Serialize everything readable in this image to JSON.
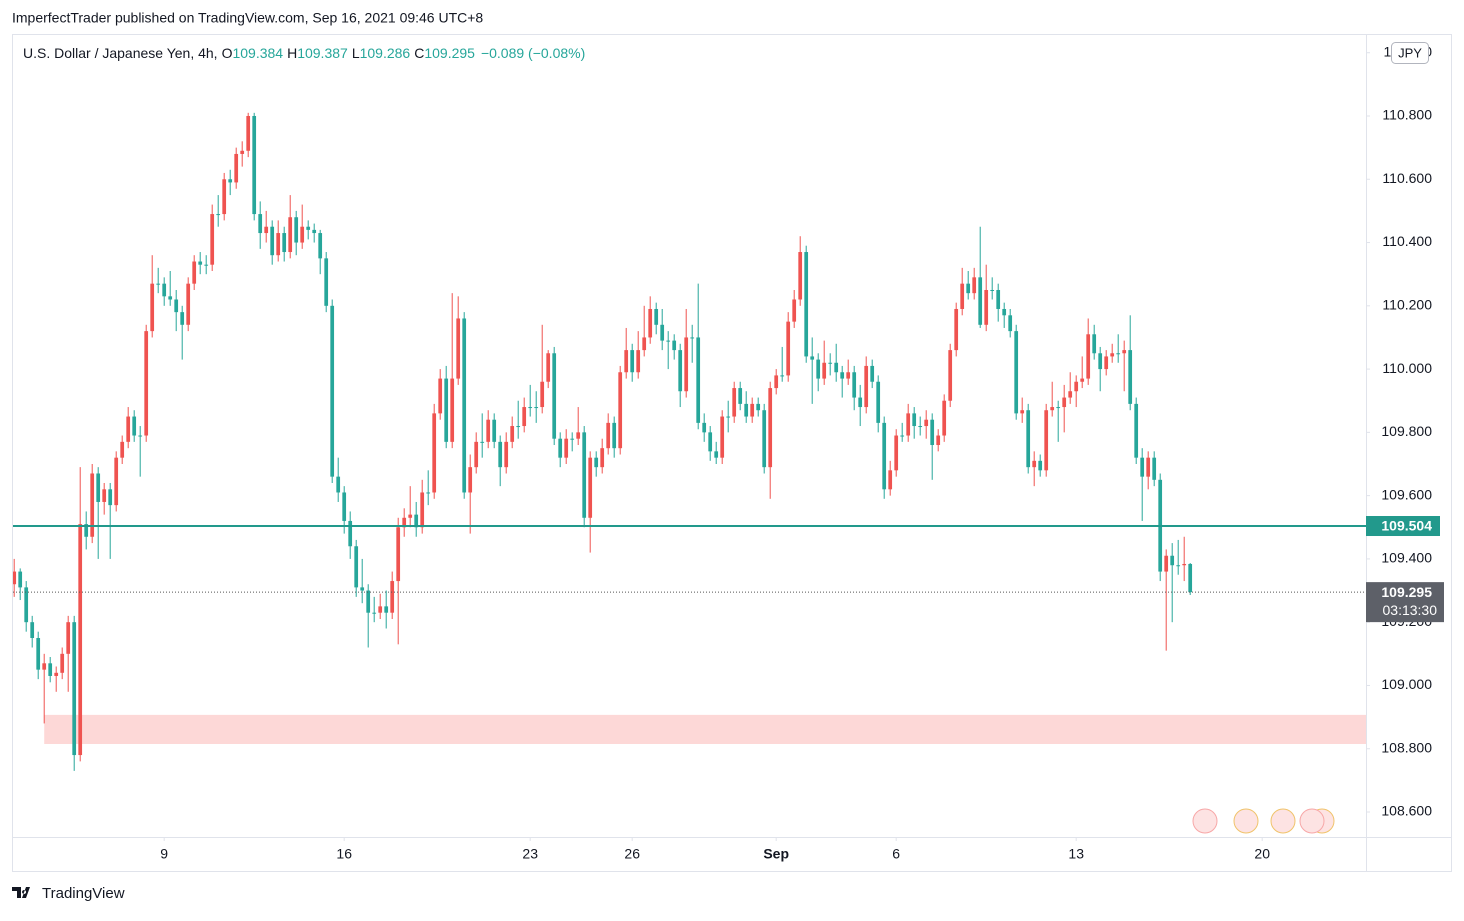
{
  "header": "ImperfectTrader published on TradingView.com, Sep 16, 2021 09:46 UTC+8",
  "footer": "TradingView",
  "chart_data": {
    "type": "candlestick",
    "legend": {
      "symbol": "U.S. Dollar / Japanese Yen, 4h,",
      "items": [
        {
          "label": "O",
          "value": 109.384
        },
        {
          "label": "H",
          "value": 109.387
        },
        {
          "label": "L",
          "value": 109.286
        },
        {
          "label": "C",
          "value": 109.295
        }
      ],
      "change": "−0.089 (−0.08%)"
    },
    "currency": "JPY",
    "up_color": "#ef5350",
    "down_color": "#26a69a",
    "xlim": [
      -0.2,
      225.3
    ],
    "xticks": [
      {
        "value": 25,
        "label": "9"
      },
      {
        "value": 55,
        "label": "16"
      },
      {
        "value": 86,
        "label": "23"
      },
      {
        "value": 103,
        "label": "26"
      },
      {
        "value": 127,
        "label": "Sep"
      },
      {
        "value": 147,
        "label": "6"
      },
      {
        "value": 177,
        "label": "13"
      },
      {
        "value": 208,
        "label": "20"
      }
    ],
    "ylim": [
      108.521,
      111.056
    ],
    "yticks": [
      {
        "value": 108.6,
        "label": "108.600"
      },
      {
        "value": 108.8,
        "label": "108.800"
      },
      {
        "value": 109.0,
        "label": "109.000"
      },
      {
        "value": 109.2,
        "label": "109.200"
      },
      {
        "value": 109.4,
        "label": "109.400"
      },
      {
        "value": 109.6,
        "label": "109.600"
      },
      {
        "value": 109.8,
        "label": "109.800"
      },
      {
        "value": 110.0,
        "label": "110.000"
      },
      {
        "value": 110.2,
        "label": "110.200"
      },
      {
        "value": 110.4,
        "label": "110.400"
      },
      {
        "value": 110.6,
        "label": "110.600"
      },
      {
        "value": 110.8,
        "label": "110.800"
      },
      {
        "value": 111.0,
        "label": "111.000"
      }
    ],
    "horizontal_line": {
      "value": 109.504,
      "color": "#22998c"
    },
    "last_price": {
      "value": 109.295,
      "countdown": "03:13:30"
    },
    "zone": {
      "from": 108.815,
      "to": 108.907,
      "start_index": 5,
      "color": "#fdd8d7"
    },
    "ohlc": [
      [
        109.32,
        109.4,
        109.28,
        109.36
      ],
      [
        109.36,
        109.37,
        109.27,
        109.31
      ],
      [
        109.31,
        109.33,
        109.17,
        109.2
      ],
      [
        109.2,
        109.22,
        109.12,
        109.15
      ],
      [
        109.15,
        109.17,
        109.02,
        109.05
      ],
      [
        109.05,
        109.1,
        108.88,
        109.07
      ],
      [
        109.07,
        109.09,
        109.01,
        109.03
      ],
      [
        109.03,
        109.06,
        108.98,
        109.04
      ],
      [
        109.04,
        109.12,
        109.02,
        109.1
      ],
      [
        109.1,
        109.22,
        108.98,
        109.2
      ],
      [
        109.2,
        109.22,
        108.73,
        108.78
      ],
      [
        108.78,
        109.69,
        108.76,
        109.51
      ],
      [
        109.51,
        109.55,
        109.43,
        109.47
      ],
      [
        109.47,
        109.7,
        109.45,
        109.67
      ],
      [
        109.67,
        109.69,
        109.4,
        109.58
      ],
      [
        109.58,
        109.64,
        109.54,
        109.62
      ],
      [
        109.62,
        109.64,
        109.4,
        109.57
      ],
      [
        109.57,
        109.74,
        109.55,
        109.72
      ],
      [
        109.72,
        109.79,
        109.7,
        109.77
      ],
      [
        109.77,
        109.88,
        109.75,
        109.85
      ],
      [
        109.85,
        109.87,
        109.77,
        109.79
      ],
      [
        109.79,
        109.82,
        109.66,
        109.79
      ],
      [
        109.79,
        110.14,
        109.77,
        110.12
      ],
      [
        110.12,
        110.36,
        110.1,
        110.27
      ],
      [
        110.27,
        110.32,
        110.24,
        110.27
      ],
      [
        110.27,
        110.29,
        110.2,
        110.23
      ],
      [
        110.23,
        110.31,
        110.2,
        110.22
      ],
      [
        110.22,
        110.25,
        110.12,
        110.18
      ],
      [
        110.18,
        110.2,
        110.03,
        110.14
      ],
      [
        110.14,
        110.29,
        110.12,
        110.27
      ],
      [
        110.27,
        110.36,
        110.25,
        110.34
      ],
      [
        110.34,
        110.37,
        110.3,
        110.33
      ],
      [
        110.33,
        110.36,
        110.3,
        110.33
      ],
      [
        110.33,
        110.52,
        110.31,
        110.49
      ],
      [
        110.49,
        110.55,
        110.45,
        110.49
      ],
      [
        110.49,
        110.62,
        110.47,
        110.6
      ],
      [
        110.6,
        110.63,
        110.55,
        110.59
      ],
      [
        110.59,
        110.7,
        110.57,
        110.68
      ],
      [
        110.68,
        110.72,
        110.64,
        110.69
      ],
      [
        110.69,
        110.81,
        110.67,
        110.8
      ],
      [
        110.8,
        110.81,
        110.47,
        110.49
      ],
      [
        110.49,
        110.53,
        110.38,
        110.43
      ],
      [
        110.43,
        110.5,
        110.4,
        110.45
      ],
      [
        110.45,
        110.47,
        110.33,
        110.36
      ],
      [
        110.36,
        110.47,
        110.34,
        110.43
      ],
      [
        110.43,
        110.45,
        110.34,
        110.37
      ],
      [
        110.37,
        110.55,
        110.35,
        110.48
      ],
      [
        110.48,
        110.5,
        110.36,
        110.4
      ],
      [
        110.4,
        110.52,
        110.38,
        110.45
      ],
      [
        110.45,
        110.47,
        110.41,
        110.44
      ],
      [
        110.44,
        110.46,
        110.4,
        110.43
      ],
      [
        110.43,
        110.44,
        110.3,
        110.35
      ],
      [
        110.35,
        110.37,
        110.18,
        110.2
      ],
      [
        110.2,
        110.22,
        109.64,
        109.66
      ],
      [
        109.66,
        109.72,
        109.58,
        109.61
      ],
      [
        109.61,
        109.63,
        109.48,
        109.52
      ],
      [
        109.52,
        109.55,
        109.4,
        109.44
      ],
      [
        109.44,
        109.46,
        109.28,
        109.31
      ],
      [
        109.31,
        109.4,
        109.26,
        109.3
      ],
      [
        109.3,
        109.32,
        109.12,
        109.23
      ],
      [
        109.23,
        109.28,
        109.2,
        109.23
      ],
      [
        109.23,
        109.29,
        109.21,
        109.25
      ],
      [
        109.25,
        109.3,
        109.18,
        109.23
      ],
      [
        109.23,
        109.36,
        109.21,
        109.33
      ],
      [
        109.33,
        109.53,
        109.13,
        109.5
      ],
      [
        109.5,
        109.56,
        109.47,
        109.53
      ],
      [
        109.53,
        109.63,
        109.5,
        109.54
      ],
      [
        109.54,
        109.58,
        109.47,
        109.5
      ],
      [
        109.5,
        109.65,
        109.48,
        109.61
      ],
      [
        109.61,
        109.68,
        109.57,
        109.61
      ],
      [
        109.61,
        109.89,
        109.59,
        109.86
      ],
      [
        109.86,
        110.0,
        109.84,
        109.97
      ],
      [
        109.97,
        110.01,
        109.75,
        109.77
      ],
      [
        109.77,
        110.24,
        109.75,
        109.97
      ],
      [
        109.97,
        110.23,
        109.95,
        110.16
      ],
      [
        110.16,
        110.18,
        109.59,
        109.61
      ],
      [
        109.61,
        109.73,
        109.48,
        109.69
      ],
      [
        109.69,
        109.8,
        109.67,
        109.77
      ],
      [
        109.77,
        109.86,
        109.72,
        109.77
      ],
      [
        109.77,
        109.87,
        109.75,
        109.84
      ],
      [
        109.84,
        109.86,
        109.75,
        109.77
      ],
      [
        109.77,
        109.79,
        109.63,
        109.69
      ],
      [
        109.69,
        109.8,
        109.67,
        109.77
      ],
      [
        109.77,
        109.85,
        109.75,
        109.82
      ],
      [
        109.82,
        109.9,
        109.78,
        109.82
      ],
      [
        109.82,
        109.91,
        109.8,
        109.88
      ],
      [
        109.88,
        109.95,
        109.85,
        109.88
      ],
      [
        109.88,
        109.93,
        109.83,
        109.88
      ],
      [
        109.88,
        110.14,
        109.86,
        109.96
      ],
      [
        109.96,
        110.06,
        109.94,
        110.05
      ],
      [
        110.05,
        110.07,
        109.76,
        109.78
      ],
      [
        109.78,
        109.8,
        109.69,
        109.72
      ],
      [
        109.72,
        109.81,
        109.7,
        109.78
      ],
      [
        109.78,
        109.8,
        109.74,
        109.78
      ],
      [
        109.78,
        109.88,
        109.76,
        109.8
      ],
      [
        109.8,
        109.82,
        109.5,
        109.53
      ],
      [
        109.53,
        109.74,
        109.42,
        109.72
      ],
      [
        109.72,
        109.74,
        109.66,
        109.69
      ],
      [
        109.69,
        109.78,
        109.67,
        109.75
      ],
      [
        109.75,
        109.86,
        109.73,
        109.83
      ],
      [
        109.83,
        109.85,
        109.72,
        109.75
      ],
      [
        109.75,
        110.01,
        109.73,
        109.99
      ],
      [
        109.99,
        110.13,
        109.97,
        110.06
      ],
      [
        110.06,
        110.08,
        109.96,
        109.99
      ],
      [
        109.99,
        110.12,
        109.97,
        110.06
      ],
      [
        110.06,
        110.2,
        110.04,
        110.1
      ],
      [
        110.1,
        110.23,
        110.08,
        110.19
      ],
      [
        110.19,
        110.21,
        110.11,
        110.14
      ],
      [
        110.14,
        110.19,
        110.06,
        110.09
      ],
      [
        110.09,
        110.12,
        110.0,
        110.09
      ],
      [
        110.09,
        110.11,
        110.03,
        110.06
      ],
      [
        110.06,
        110.08,
        109.88,
        109.93
      ],
      [
        109.93,
        110.19,
        109.91,
        110.1
      ],
      [
        110.1,
        110.14,
        110.02,
        110.1
      ],
      [
        110.1,
        110.27,
        109.81,
        109.83
      ],
      [
        109.83,
        109.86,
        109.77,
        109.8
      ],
      [
        109.8,
        109.82,
        109.71,
        109.74
      ],
      [
        109.74,
        109.77,
        109.7,
        109.72
      ],
      [
        109.72,
        109.87,
        109.7,
        109.85
      ],
      [
        109.85,
        109.9,
        109.8,
        109.85
      ],
      [
        109.85,
        109.96,
        109.83,
        109.94
      ],
      [
        109.94,
        109.96,
        109.87,
        109.89
      ],
      [
        109.89,
        109.93,
        109.83,
        109.85
      ],
      [
        109.85,
        109.91,
        109.83,
        109.89
      ],
      [
        109.89,
        109.91,
        109.85,
        109.87
      ],
      [
        109.87,
        109.89,
        109.67,
        109.69
      ],
      [
        109.69,
        109.96,
        109.59,
        109.94
      ],
      [
        109.94,
        110.0,
        109.92,
        109.98
      ],
      [
        109.98,
        110.07,
        109.96,
        109.98
      ],
      [
        109.98,
        110.18,
        109.96,
        110.15
      ],
      [
        110.15,
        110.25,
        110.13,
        110.22
      ],
      [
        110.22,
        110.42,
        110.2,
        110.37
      ],
      [
        110.37,
        110.39,
        110.02,
        110.04
      ],
      [
        110.04,
        110.1,
        109.89,
        110.03
      ],
      [
        110.03,
        110.05,
        109.93,
        109.97
      ],
      [
        109.97,
        110.09,
        109.95,
        110.02
      ],
      [
        110.02,
        110.05,
        109.98,
        110.02
      ],
      [
        110.02,
        110.08,
        109.96,
        109.99
      ],
      [
        109.99,
        110.01,
        109.91,
        109.97
      ],
      [
        109.97,
        110.03,
        109.95,
        109.99
      ],
      [
        109.99,
        110.01,
        109.87,
        109.91
      ],
      [
        109.91,
        109.95,
        109.82,
        109.88
      ],
      [
        109.88,
        110.04,
        109.86,
        110.01
      ],
      [
        110.01,
        110.03,
        109.94,
        109.96
      ],
      [
        109.96,
        109.98,
        109.8,
        109.83
      ],
      [
        109.83,
        109.85,
        109.59,
        109.62
      ],
      [
        109.62,
        109.71,
        109.6,
        109.68
      ],
      [
        109.68,
        109.81,
        109.66,
        109.79
      ],
      [
        109.79,
        109.83,
        109.77,
        109.79
      ],
      [
        109.79,
        109.89,
        109.77,
        109.86
      ],
      [
        109.86,
        109.88,
        109.78,
        109.82
      ],
      [
        109.82,
        109.85,
        109.79,
        109.82
      ],
      [
        109.82,
        109.87,
        109.78,
        109.84
      ],
      [
        109.84,
        109.86,
        109.65,
        109.76
      ],
      [
        109.76,
        109.81,
        109.74,
        109.79
      ],
      [
        109.79,
        109.92,
        109.77,
        109.9
      ],
      [
        109.9,
        110.08,
        109.88,
        110.06
      ],
      [
        110.06,
        110.21,
        110.04,
        110.19
      ],
      [
        110.19,
        110.32,
        110.17,
        110.27
      ],
      [
        110.27,
        110.31,
        110.22,
        110.24
      ],
      [
        110.24,
        110.32,
        110.22,
        110.29
      ],
      [
        110.29,
        110.45,
        110.13,
        110.14
      ],
      [
        110.14,
        110.33,
        110.12,
        110.25
      ],
      [
        110.25,
        110.29,
        110.22,
        110.25
      ],
      [
        110.25,
        110.27,
        110.15,
        110.19
      ],
      [
        110.19,
        110.21,
        110.13,
        110.17
      ],
      [
        110.17,
        110.19,
        110.1,
        110.12
      ],
      [
        110.12,
        110.14,
        109.84,
        109.86
      ],
      [
        109.86,
        109.91,
        109.83,
        109.87
      ],
      [
        109.87,
        109.89,
        109.67,
        109.69
      ],
      [
        109.69,
        109.74,
        109.63,
        109.71
      ],
      [
        109.71,
        109.73,
        109.66,
        109.68
      ],
      [
        109.68,
        109.89,
        109.66,
        109.87
      ],
      [
        109.87,
        109.96,
        109.85,
        109.88
      ],
      [
        109.88,
        109.9,
        109.77,
        109.88
      ],
      [
        109.88,
        109.95,
        109.8,
        109.91
      ],
      [
        109.91,
        109.99,
        109.89,
        109.93
      ],
      [
        109.93,
        109.98,
        109.88,
        109.96
      ],
      [
        109.96,
        110.04,
        109.94,
        109.97
      ],
      [
        109.97,
        110.16,
        109.95,
        110.11
      ],
      [
        110.11,
        110.14,
        110.03,
        110.05
      ],
      [
        110.05,
        110.07,
        109.93,
        110.0
      ],
      [
        110.0,
        110.06,
        109.98,
        110.04
      ],
      [
        110.04,
        110.08,
        110.02,
        110.05
      ],
      [
        110.05,
        110.11,
        110.02,
        110.05
      ],
      [
        110.05,
        110.09,
        109.93,
        110.06
      ],
      [
        110.06,
        110.17,
        109.87,
        109.89
      ],
      [
        109.89,
        109.91,
        109.7,
        109.72
      ],
      [
        109.72,
        109.75,
        109.52,
        109.66
      ],
      [
        109.66,
        109.74,
        109.62,
        109.72
      ],
      [
        109.72,
        109.74,
        109.63,
        109.65
      ],
      [
        109.65,
        109.67,
        109.33,
        109.36
      ],
      [
        109.36,
        109.43,
        109.11,
        109.41
      ],
      [
        109.41,
        109.45,
        109.2,
        109.38
      ],
      [
        109.38,
        109.46,
        109.35,
        109.38
      ],
      [
        109.38,
        109.47,
        109.33,
        109.384
      ],
      [
        109.384,
        109.387,
        109.286,
        109.295
      ]
    ]
  }
}
